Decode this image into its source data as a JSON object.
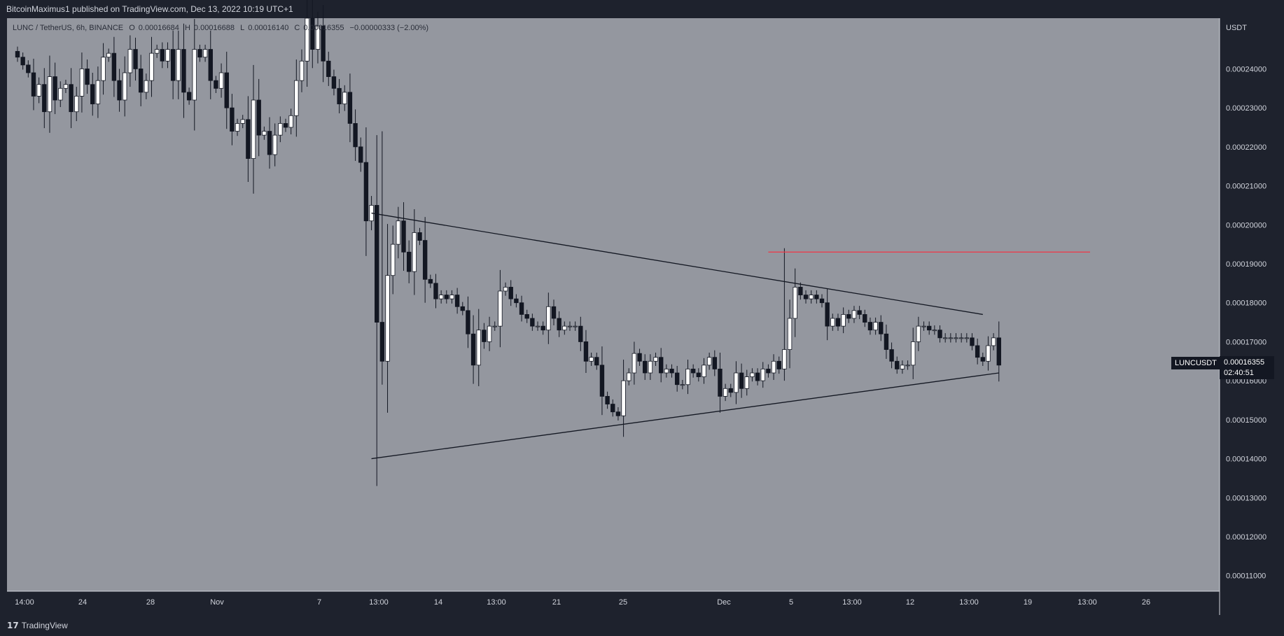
{
  "header": {
    "published": "BitcoinMaximus1 published on TradingView.com, Dec 13, 2022 10:19 UTC+1"
  },
  "legend": {
    "symbol": "LUNC / TetherUS, 6h, BINANCE",
    "open_label": "O",
    "open": "0.00016684",
    "high_label": "H",
    "high": "0.00016688",
    "low_label": "L",
    "low": "0.00016140",
    "close_label": "C",
    "close": "0.00016355",
    "change": "−0.00000333 (−2.00%)"
  },
  "price_axis": {
    "unit": "USDT"
  },
  "last_price": {
    "ticker": "LUNCUSDT",
    "price": "0.00016355",
    "countdown": "02:40:51"
  },
  "branding": {
    "logo_mark": "17",
    "name": "TradingView"
  },
  "colors": {
    "plot_background": "#94979f",
    "ui_background": "#1e222d",
    "axis_text": "#d1d4dc",
    "trendline": "#131722",
    "resistance": "#f23645",
    "bull_candle": "#ffffff",
    "bear_candle": "#131722"
  },
  "chart_data": {
    "type": "candlestick",
    "ylim": [
      0.000106,
      0.000253
    ],
    "y_ticks": [
      "0.00011000",
      "0.00012000",
      "0.00013000",
      "0.00014000",
      "0.00015000",
      "0.00016000",
      "0.00017000",
      "0.00018000",
      "0.00019000",
      "0.00020000",
      "0.00021000",
      "0.00022000",
      "0.00023000",
      "0.00024000"
    ],
    "x_ticks": [
      "14:00",
      "24",
      "28",
      "Nov",
      "7",
      "13:00",
      "14",
      "13:00",
      "21",
      "25",
      "Dec",
      "5",
      "13:00",
      "12",
      "13:00",
      "19",
      "13:00",
      "26"
    ],
    "series": [
      {
        "close": [
          0.000243,
          0.000241,
          0.000239,
          0.000233,
          0.000236,
          0.000229,
          0.000238,
          0.000232,
          0.000235,
          0.000236,
          0.000229,
          0.000233,
          0.00024,
          0.000236,
          0.000231,
          0.000237,
          0.000243,
          0.000244,
          0.000237,
          0.000232,
          0.000239,
          0.000245,
          0.00024,
          0.000234,
          0.000237,
          0.000244,
          0.000245,
          0.000242,
          0.000245,
          0.000237,
          0.000245,
          0.000234,
          0.000232,
          0.000245,
          0.000243,
          0.000245,
          0.000237,
          0.000235,
          0.000239,
          0.00023,
          0.000224,
          0.000226,
          0.000227,
          0.000217,
          0.000232,
          0.000223,
          0.000224,
          0.000218,
          0.000223,
          0.000226,
          0.000225,
          0.000228,
          0.000237,
          0.000242,
          0.000253,
          0.000245,
          0.000251,
          0.000242,
          0.000238,
          0.000235,
          0.000231,
          0.000234,
          0.000226,
          0.00022,
          0.000216,
          0.000201,
          0.000205,
          0.000175,
          0.000165,
          0.000187,
          0.000195,
          0.000201,
          0.000193,
          0.000188,
          0.000198,
          0.000196,
          0.000186,
          0.000185,
          0.000181,
          0.000182,
          0.000181,
          0.000182,
          0.000179,
          0.000178,
          0.000172,
          0.000164,
          0.000173,
          0.00017,
          0.000174,
          0.000174,
          0.000183,
          0.000184,
          0.000181,
          0.00018,
          0.000177,
          0.000176,
          0.000174,
          0.000174,
          0.000173,
          0.000179,
          0.000176,
          0.000173,
          0.000174,
          0.000174,
          0.000174,
          0.00017,
          0.000165,
          0.000166,
          0.000164,
          0.000156,
          0.000154,
          0.000152,
          0.000151,
          0.00016,
          0.000162,
          0.000167,
          0.000165,
          0.000162,
          0.000165,
          0.000166,
          0.000162,
          0.000163,
          0.000162,
          0.000159,
          0.000159,
          0.000163,
          0.000162,
          0.000161,
          0.000164,
          0.000166,
          0.000163,
          0.000156,
          0.000158,
          0.000157,
          0.000162,
          0.000158,
          0.000161,
          0.000162,
          0.00016,
          0.000163,
          0.000162,
          0.000165,
          0.000163,
          0.000168,
          0.000176,
          0.000184,
          0.000182,
          0.000181,
          0.000182,
          0.000181,
          0.00018,
          0.000174,
          0.000176,
          0.000174,
          0.000177,
          0.000176,
          0.000178,
          0.000177,
          0.000175,
          0.000173,
          0.000175,
          0.000172,
          0.000168,
          0.000165,
          0.000163,
          0.000164,
          0.000164,
          0.00017,
          0.000174,
          0.000174,
          0.000173,
          0.000173,
          0.000171,
          0.000171,
          0.000171,
          0.000171,
          0.000171,
          0.000171,
          0.000169,
          0.000166,
          0.000165,
          0.000169,
          0.000171,
          0.000164
        ]
      }
    ],
    "annotations": [
      {
        "type": "trendline",
        "name": "upper-triangle-line",
        "points": [
          [
            66,
            0.000203
          ],
          [
            180,
            0.000177
          ]
        ]
      },
      {
        "type": "trendline",
        "name": "lower-triangle-line",
        "points": [
          [
            66,
            0.00014
          ],
          [
            183,
            0.000162
          ]
        ]
      },
      {
        "type": "horizontal",
        "name": "resistance-line",
        "value": 0.000193,
        "x_range": [
          140,
          200
        ]
      }
    ]
  }
}
